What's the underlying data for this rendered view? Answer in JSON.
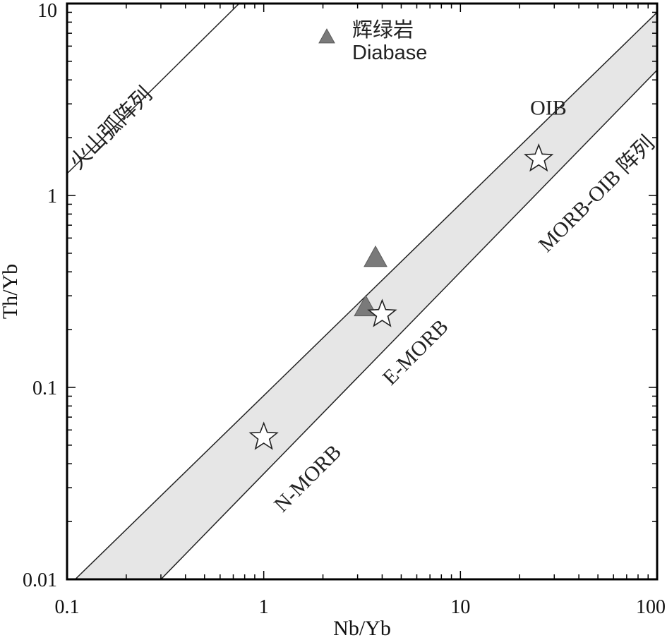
{
  "chart_data": {
    "type": "scatter",
    "x_scale": "log",
    "y_scale": "log",
    "xlabel": "Nb/Yb",
    "ylabel": "Th/Yb",
    "xlim": [
      0.1,
      100
    ],
    "ylim": [
      0.01,
      10
    ],
    "x_ticks": [
      "0.1",
      "1",
      "10",
      "100"
    ],
    "y_ticks": [
      "0.01",
      "0.1",
      "1",
      "10"
    ],
    "grid": false,
    "series": [
      {
        "name": "辉绿岩 Diabase",
        "marker": "triangle",
        "color": "#7a7a7a",
        "points": [
          [
            3.7,
            0.47
          ],
          [
            3.3,
            0.26
          ]
        ]
      },
      {
        "marker": "star",
        "color": "#ffffff",
        "points": [
          [
            1.0,
            0.055
          ],
          [
            4.0,
            0.24
          ],
          [
            25.0,
            1.55
          ]
        ]
      }
    ],
    "lines": [
      {
        "points": [
          [
            0.1,
            1.3
          ],
          [
            0.75,
            10
          ]
        ]
      },
      {
        "points": [
          [
            0.11,
            0.01
          ],
          [
            100,
            9.0
          ]
        ]
      },
      {
        "points": [
          [
            0.3,
            0.01
          ],
          [
            100,
            4.5
          ]
        ]
      }
    ],
    "band": {
      "fill": "#e6e6e6",
      "upper_line": 1,
      "lower_line": 2
    },
    "annotations": [
      {
        "text": "火山弧阵列",
        "x": 0.17,
        "y": 2.2,
        "angle": -45
      },
      {
        "text": "OIB",
        "x": 28,
        "y": 2.8,
        "angle": 0
      },
      {
        "text": "MORB-OIB 阵列",
        "x": 50,
        "y": 1.0,
        "angle": -45
      },
      {
        "text": "E-MORB",
        "x": 6.0,
        "y": 0.15,
        "angle": -45
      },
      {
        "text": "N-MORB",
        "x": 1.7,
        "y": 0.033,
        "angle": -45
      }
    ],
    "legend": {
      "position": "top-center",
      "marker": "triangle",
      "color": "#7a7a7a",
      "label_cn": "辉绿岩",
      "label_en": "Diabase"
    }
  }
}
